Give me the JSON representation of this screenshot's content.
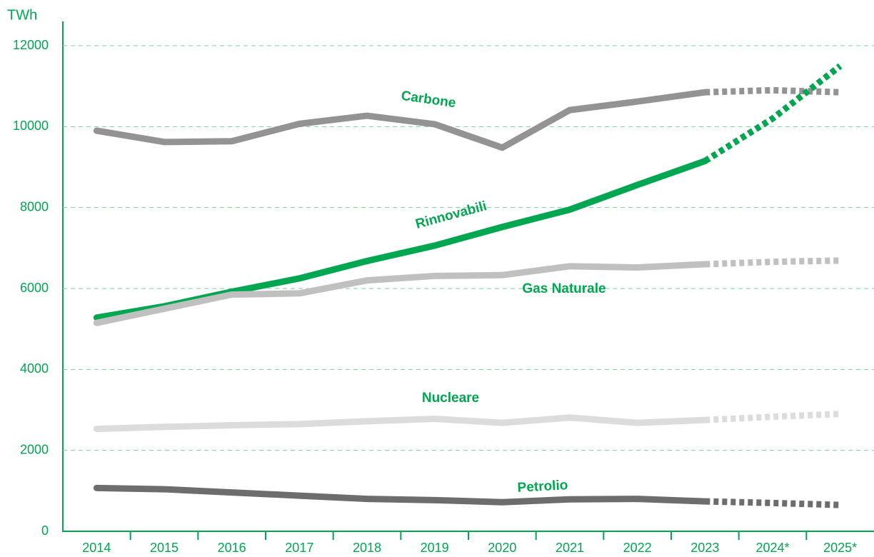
{
  "chart_data": {
    "type": "line",
    "y_unit": "TWh",
    "categories": [
      "2014",
      "2015",
      "2016",
      "2017",
      "2018",
      "2019",
      "2020",
      "2021",
      "2022",
      "2023",
      "2024*",
      "2025*"
    ],
    "series": [
      {
        "name": "Carbone",
        "color": "#939393",
        "values": [
          9900,
          9620,
          9640,
          10070,
          10270,
          10060,
          9480,
          10410,
          10620,
          10850,
          10900,
          10850
        ]
      },
      {
        "name": "Rinnovabili",
        "color": "#00a650",
        "values": [
          5280,
          5560,
          5920,
          6250,
          6680,
          7060,
          7520,
          7950,
          8560,
          9150,
          10200,
          11500
        ]
      },
      {
        "name": "Gas Naturale",
        "color": "#c0c0c0",
        "values": [
          5150,
          5500,
          5850,
          5880,
          6200,
          6310,
          6330,
          6550,
          6520,
          6600,
          6660,
          6690
        ]
      },
      {
        "name": "Nucleare",
        "color": "#dcdcdc",
        "values": [
          2530,
          2580,
          2620,
          2650,
          2720,
          2780,
          2680,
          2810,
          2680,
          2750,
          2830,
          2900
        ]
      },
      {
        "name": "Petrolio",
        "color": "#6d6d6d",
        "values": [
          1070,
          1040,
          960,
          880,
          800,
          770,
          720,
          790,
          800,
          740,
          700,
          650
        ]
      }
    ],
    "ylim": [
      0,
      12000
    ],
    "yticks": [
      0,
      2000,
      4000,
      6000,
      8000,
      10000,
      12000
    ],
    "grid": true
  }
}
